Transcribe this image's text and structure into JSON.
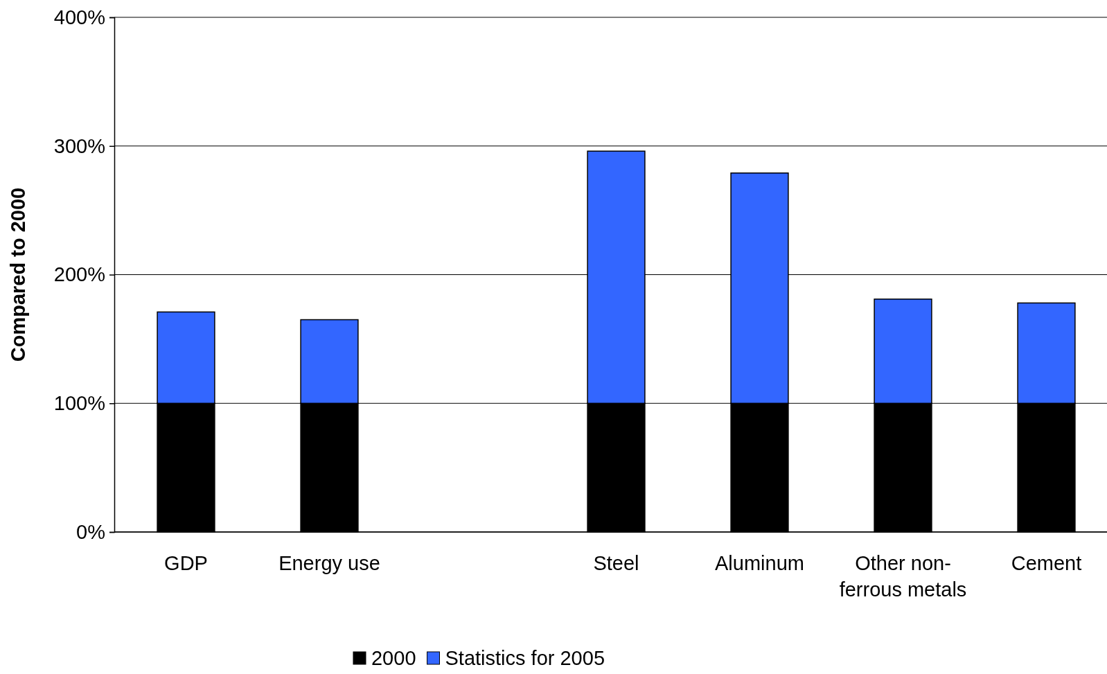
{
  "chart_data": {
    "type": "bar",
    "stacked": true,
    "ylabel": "Compared to 2000",
    "categories": [
      "GDP",
      "Energy use",
      null,
      "Steel",
      "Aluminum",
      "Other non-ferrous metals",
      "Cement"
    ],
    "series": [
      {
        "name": "2000",
        "color": "#000000",
        "values": [
          100,
          100,
          null,
          100,
          100,
          100,
          100
        ]
      },
      {
        "name": "Statistics for 2005",
        "color": "#3366ff",
        "values": [
          71,
          65,
          null,
          196,
          179,
          81,
          78
        ]
      }
    ],
    "ylim": [
      0,
      400
    ],
    "yticks": [
      {
        "value": 0,
        "label": "0%"
      },
      {
        "value": 100,
        "label": "100%"
      },
      {
        "value": 200,
        "label": "200%"
      },
      {
        "value": 300,
        "label": "300%"
      },
      {
        "value": 400,
        "label": "400%"
      }
    ],
    "grid": "y",
    "legend": "bottom"
  }
}
